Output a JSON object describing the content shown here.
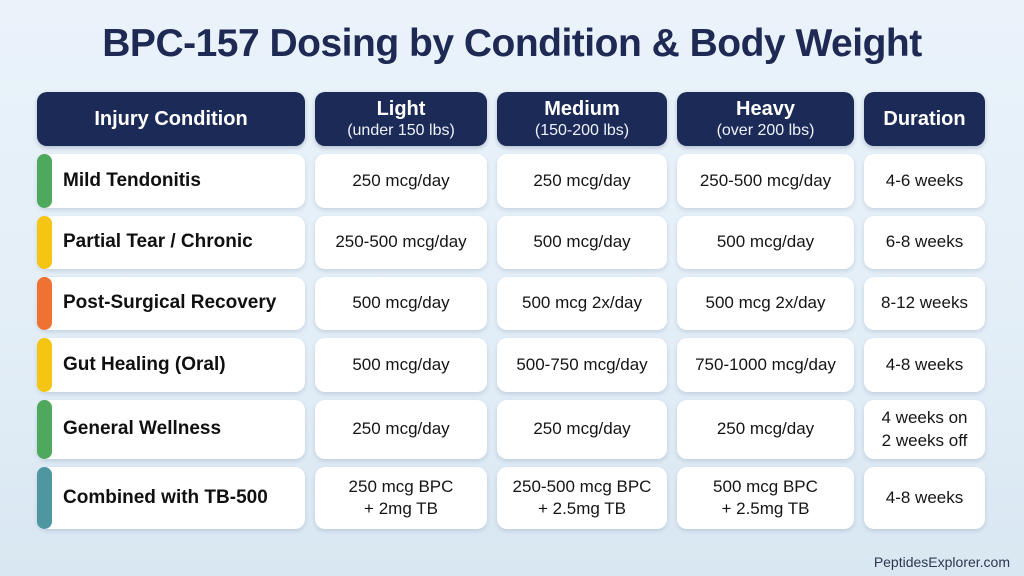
{
  "title": "BPC-157 Dosing by Condition & Body Weight",
  "footer": {
    "credit": "PeptidesExplorer.com"
  },
  "colors": {
    "background": "#e3eef7",
    "header_navy": "#1c2a57",
    "title_navy": "#1e2a54",
    "cell_white": "#ffffff",
    "accent_green": "#4fa95c",
    "accent_yellow": "#f5c513",
    "accent_orange": "#ee7231",
    "accent_teal": "#4e97a1"
  },
  "table": {
    "columns": [
      {
        "label": "Injury Condition",
        "sub": ""
      },
      {
        "label": "Light",
        "sub": "(under 150 lbs)"
      },
      {
        "label": "Medium",
        "sub": "(150-200 lbs)"
      },
      {
        "label": "Heavy",
        "sub": "(over 200 lbs)"
      },
      {
        "label": "Duration",
        "sub": ""
      }
    ],
    "rows": [
      {
        "condition": "Mild Tendonitis",
        "accent": "#4fa95c",
        "light": "250 mcg/day",
        "medium": "250 mcg/day",
        "heavy": "250-500 mcg/day",
        "duration": "4-6 weeks"
      },
      {
        "condition": "Partial Tear / Chronic",
        "accent": "#f5c513",
        "light": "250-500 mcg/day",
        "medium": "500 mcg/day",
        "heavy": "500 mcg/day",
        "duration": "6-8 weeks"
      },
      {
        "condition": "Post-Surgical Recovery",
        "accent": "#ee7231",
        "light": "500 mcg/day",
        "medium": "500 mcg 2x/day",
        "heavy": "500 mcg 2x/day",
        "duration": "8-12 weeks"
      },
      {
        "condition": "Gut Healing (Oral)",
        "accent": "#f5c513",
        "light": "500 mcg/day",
        "medium": "500-750 mcg/day",
        "heavy": "750-1000 mcg/day",
        "duration": "4-8 weeks"
      },
      {
        "condition": "General Wellness",
        "accent": "#4fa95c",
        "light": "250 mcg/day",
        "medium": "250 mcg/day",
        "heavy": "250 mcg/day",
        "duration": "4 weeks on\n2 weeks off"
      },
      {
        "condition": "Combined with TB-500",
        "accent": "#4e97a1",
        "light": "250 mcg BPC\n+ 2mg TB",
        "medium": "250-500 mcg BPC\n+ 2.5mg TB",
        "heavy": "500 mcg BPC\n+ 2.5mg TB",
        "duration": "4-8 weeks"
      }
    ]
  },
  "chart_data": {
    "type": "table",
    "title": "BPC-157 Dosing by Condition & Body Weight",
    "columns": [
      "Injury Condition",
      "Light (under 150 lbs)",
      "Medium (150-200 lbs)",
      "Heavy (over 200 lbs)",
      "Duration"
    ],
    "rows": [
      [
        "Mild Tendonitis",
        "250 mcg/day",
        "250 mcg/day",
        "250-500 mcg/day",
        "4-6 weeks"
      ],
      [
        "Partial Tear / Chronic",
        "250-500 mcg/day",
        "500 mcg/day",
        "500 mcg/day",
        "6-8 weeks"
      ],
      [
        "Post-Surgical Recovery",
        "500 mcg/day",
        "500 mcg 2x/day",
        "500 mcg 2x/day",
        "8-12 weeks"
      ],
      [
        "Gut Healing (Oral)",
        "500 mcg/day",
        "500-750 mcg/day",
        "750-1000 mcg/day",
        "4-8 weeks"
      ],
      [
        "General Wellness",
        "250 mcg/day",
        "250 mcg/day",
        "250 mcg/day",
        "4 weeks on 2 weeks off"
      ],
      [
        "Combined with TB-500",
        "250 mcg BPC + 2mg TB",
        "250-500 mcg BPC + 2.5mg TB",
        "500 mcg BPC + 2.5mg TB",
        "4-8 weeks"
      ]
    ],
    "legend_position": "none",
    "grid": false,
    "source_credit": "PeptidesExplorer.com"
  }
}
